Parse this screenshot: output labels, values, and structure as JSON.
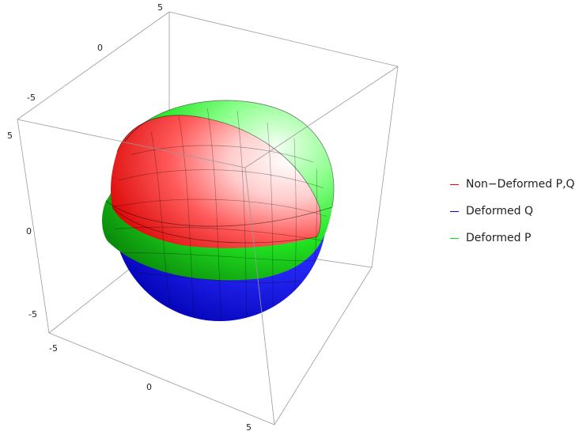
{
  "chart_data": {
    "type": "3d-surface",
    "axes": {
      "x": {
        "range": [
          -5,
          5
        ],
        "ticks": [
          "-5",
          "0",
          "5"
        ]
      },
      "y": {
        "range": [
          -5,
          5
        ],
        "ticks": [
          "-5",
          "0",
          "5"
        ]
      },
      "z": {
        "range": [
          -5,
          5
        ],
        "ticks": [
          "-5",
          "0",
          "5"
        ]
      }
    },
    "series": [
      {
        "name": "Non−Deformed P,Q",
        "color": "#ff0000",
        "shape": "ellipsoidal cap"
      },
      {
        "name": "Deformed Q",
        "color": "#0000ff",
        "shape": "sphere"
      },
      {
        "name": "Deformed P",
        "color": "#00ee00",
        "shape": "spherical band"
      }
    ],
    "legend": {
      "position": "right"
    },
    "box": true,
    "mesh": true
  }
}
